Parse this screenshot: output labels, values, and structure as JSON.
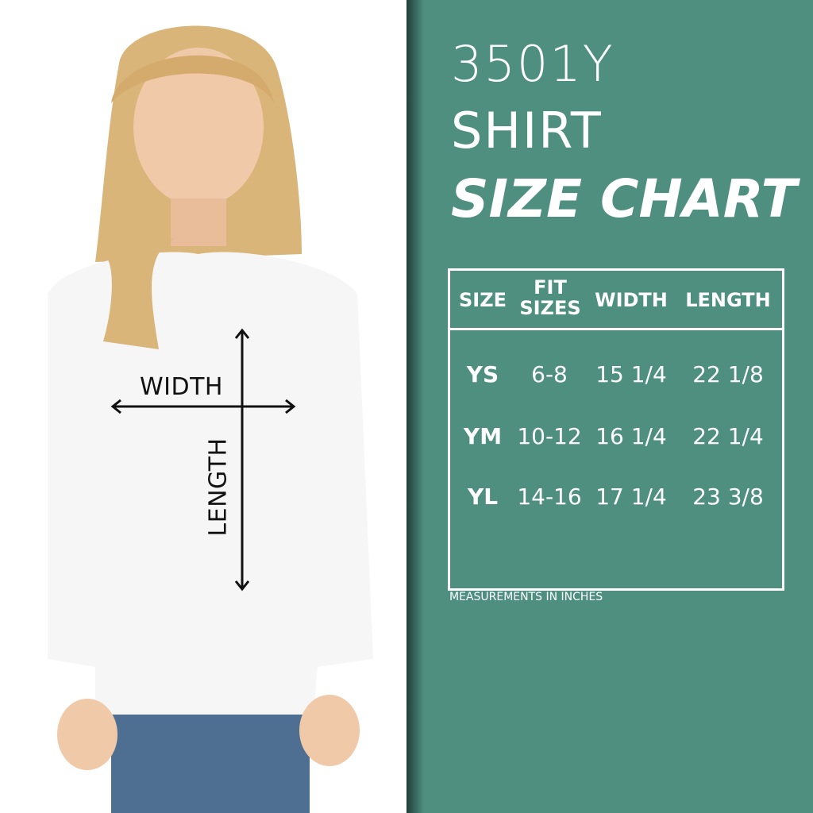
{
  "photo": {
    "width_label": "WIDTH",
    "length_label": "LENGTH"
  },
  "title": {
    "line1": "3501Y",
    "line2": "SHIRT",
    "line3": "SIZE CHART"
  },
  "table": {
    "headers": [
      "SIZE",
      "FIT SIZES",
      "WIDTH",
      "LENGTH"
    ],
    "rows": [
      {
        "size": "YS",
        "fit": "6-8",
        "width": "15 1/4",
        "length": "22 1/8"
      },
      {
        "size": "YM",
        "fit": "10-12",
        "width": "16 1/4",
        "length": "22 1/4"
      },
      {
        "size": "YL",
        "fit": "14-16",
        "width": "17 1/4",
        "length": "23 3/8"
      }
    ]
  },
  "note": "MEASUREMENTS IN INCHES",
  "colors": {
    "panel": "#4e8f80",
    "text": "#ffffff"
  }
}
